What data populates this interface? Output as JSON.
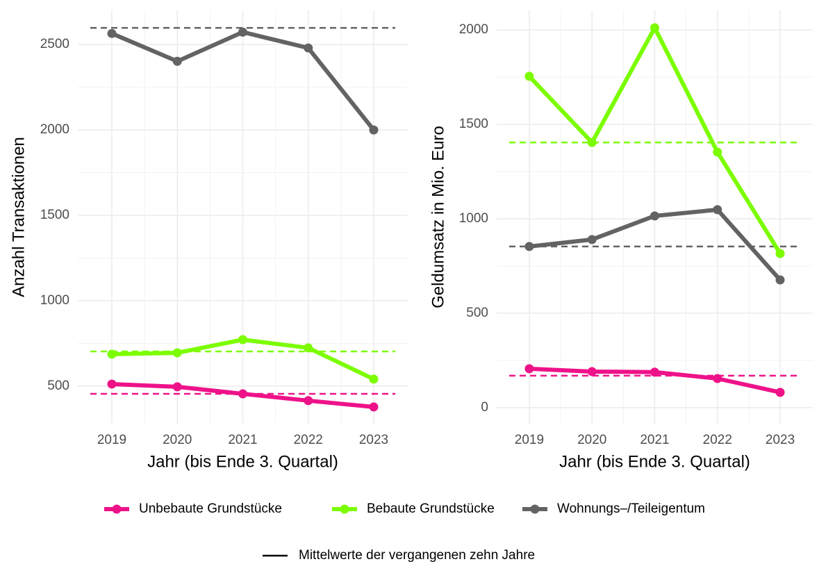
{
  "chart_data": [
    {
      "type": "line",
      "xlabel": "Jahr (bis Ende 3. Quartal)",
      "ylabel": "Anzahl Transaktionen",
      "categories": [
        "2019",
        "2020",
        "2021",
        "2022",
        "2023"
      ],
      "ylim": [
        280,
        2700
      ],
      "yticks": [
        500,
        1000,
        1500,
        2000,
        2500
      ],
      "grid": true,
      "legend_note": "Mittelwerte der vergangenen zehn Jahre",
      "series": [
        {
          "name": "Unbebaute Grundstücke",
          "color": "#ee1289",
          "values": [
            512,
            496,
            455,
            415,
            378
          ],
          "mean": 455
        },
        {
          "name": "Bebaute Grundstücke",
          "color": "#7cfc00",
          "values": [
            687,
            695,
            772,
            724,
            541
          ],
          "mean": 703
        },
        {
          "name": "Wohnungs–/Teileigentum",
          "color": "#636363",
          "values": [
            2565,
            2402,
            2573,
            2480,
            2000
          ],
          "mean": 2598
        }
      ]
    },
    {
      "type": "line",
      "xlabel": "Jahr (bis Ende 3. Quartal)",
      "ylabel": "Geldumsatz in Mio. Euro",
      "categories": [
        "2019",
        "2020",
        "2021",
        "2022",
        "2023"
      ],
      "ylim": [
        -85,
        2103
      ],
      "yticks": [
        0,
        500,
        1000,
        1500,
        2000
      ],
      "grid": true,
      "series": [
        {
          "name": "Unbebaute Grundstücke",
          "color": "#ee1289",
          "values": [
            206,
            191,
            188,
            154,
            81
          ],
          "mean": 169
        },
        {
          "name": "Bebaute Grundstücke",
          "color": "#7cfc00",
          "values": [
            1754,
            1404,
            2011,
            1353,
            816
          ],
          "mean": 1404
        },
        {
          "name": "Wohnungs–/Teileigentum",
          "color": "#636363",
          "values": [
            853,
            890,
            1015,
            1048,
            676
          ],
          "mean": 853
        }
      ]
    }
  ]
}
